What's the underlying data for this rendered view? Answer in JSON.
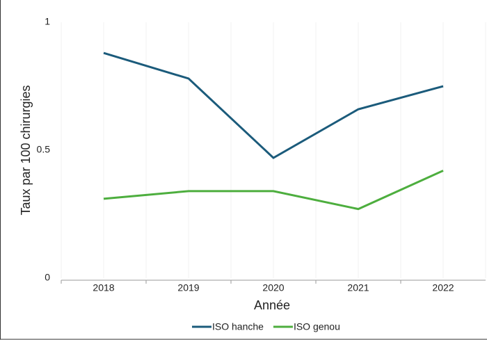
{
  "chart_data": {
    "type": "line",
    "x_label": "Année",
    "y_label": "Taux par 100 chirurgies",
    "categories": [
      "2018",
      "2019",
      "2020",
      "2021",
      "2022"
    ],
    "series": [
      {
        "name": "ISO hanche",
        "color": "#1b5b7b",
        "values": [
          0.88,
          0.78,
          0.47,
          0.66,
          0.75
        ]
      },
      {
        "name": "ISO genou",
        "color": "#4dae3e",
        "values": [
          0.31,
          0.34,
          0.34,
          0.27,
          0.42
        ]
      }
    ],
    "ylim": [
      0,
      1
    ],
    "yticks": [
      0,
      0.5,
      1
    ],
    "grid": false,
    "legend": "bottom"
  }
}
